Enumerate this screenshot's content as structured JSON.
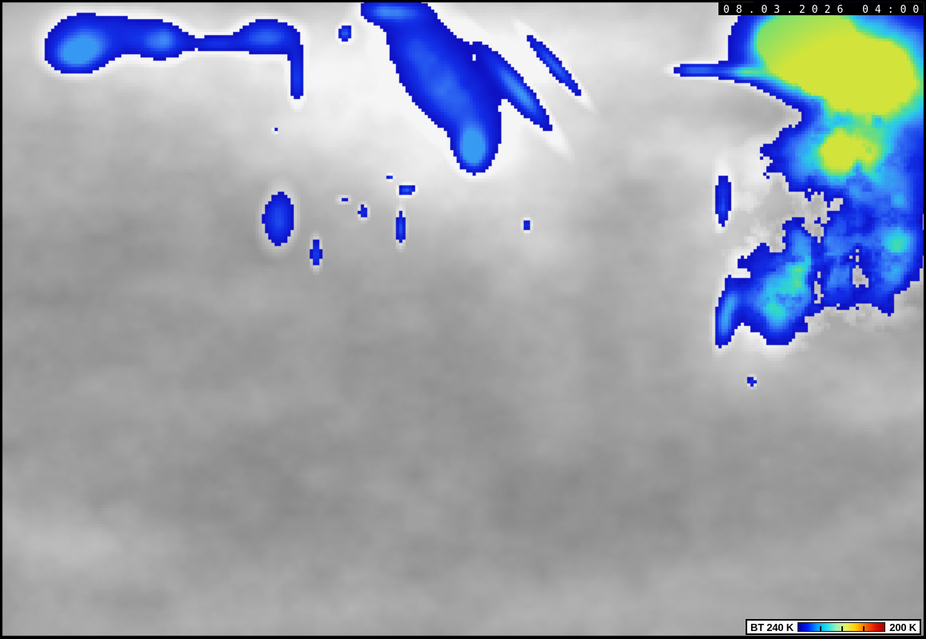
{
  "header": {
    "timestamp": "08.03.2026 04:00"
  },
  "legend": {
    "min_label": "BT 240 K",
    "max_label": "200 K",
    "tick_positions_percent": [
      25,
      50,
      75
    ],
    "colormap": [
      "#0000a0",
      "#0020ff",
      "#00a0ff",
      "#20e0e8",
      "#a0f0b8",
      "#e8f060",
      "#ffcc00",
      "#ff6a00",
      "#e01800",
      "#a00000"
    ],
    "box_bg": "#fdfdfd",
    "box_border": "#000000"
  },
  "scene": {
    "type": "infrared-satellite-brightness-temperature-image",
    "frame_color": "#000000",
    "timestamp_bar_bg": "#000000",
    "timestamp_text_color": "#ffffff",
    "background_gray": "#9e9e9e",
    "bt_ramp": [
      {
        "t": 0.0,
        "c": "#0e0ec0"
      },
      {
        "t": 0.3,
        "c": "#1230e8"
      },
      {
        "t": 0.55,
        "c": "#3c82f6"
      },
      {
        "t": 0.7,
        "c": "#2dc4ee"
      },
      {
        "t": 0.78,
        "c": "#34d8c4"
      },
      {
        "t": 0.88,
        "c": "#78de6e"
      },
      {
        "t": 1.0,
        "c": "#d2e43c"
      }
    ]
  }
}
